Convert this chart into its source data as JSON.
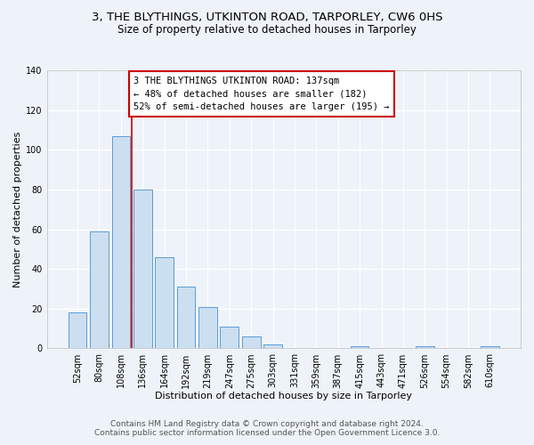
{
  "title": "3, THE BLYTHINGS, UTKINTON ROAD, TARPORLEY, CW6 0HS",
  "subtitle": "Size of property relative to detached houses in Tarporley",
  "xlabel": "Distribution of detached houses by size in Tarporley",
  "ylabel": "Number of detached properties",
  "bar_labels": [
    "52sqm",
    "80sqm",
    "108sqm",
    "136sqm",
    "164sqm",
    "192sqm",
    "219sqm",
    "247sqm",
    "275sqm",
    "303sqm",
    "331sqm",
    "359sqm",
    "387sqm",
    "415sqm",
    "443sqm",
    "471sqm",
    "526sqm",
    "554sqm",
    "582sqm",
    "610sqm"
  ],
  "bar_values": [
    18,
    59,
    107,
    80,
    46,
    31,
    21,
    11,
    6,
    2,
    0,
    0,
    0,
    1,
    0,
    0,
    1,
    0,
    0,
    1
  ],
  "bar_color": "#ccdff0",
  "bar_edge_color": "#5b9bd5",
  "annotation_text_line1": "3 THE BLYTHINGS UTKINTON ROAD: 137sqm",
  "annotation_text_line2": "← 48% of detached houses are smaller (182)",
  "annotation_text_line3": "52% of semi-detached houses are larger (195) →",
  "annotation_box_color": "#ffffff",
  "annotation_box_edge": "#cc0000",
  "vline_color": "#cc0000",
  "vline_x": 2.5,
  "ylim": [
    0,
    140
  ],
  "yticks": [
    0,
    20,
    40,
    60,
    80,
    100,
    120,
    140
  ],
  "footnote1": "Contains HM Land Registry data © Crown copyright and database right 2024.",
  "footnote2": "Contains public sector information licensed under the Open Government Licence 3.0.",
  "bg_color": "#eef3f9",
  "grid_color": "#ffffff",
  "title_fontsize": 9.5,
  "subtitle_fontsize": 8.5,
  "axis_label_fontsize": 8,
  "tick_fontsize": 7,
  "annotation_fontsize": 7.5,
  "footnote_fontsize": 6.5
}
